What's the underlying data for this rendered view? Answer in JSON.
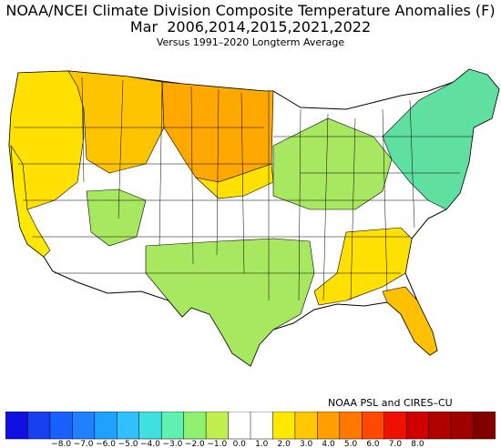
{
  "header": {
    "title_line1": "NOAA/NCEI Climate Division Composite Temperature Anomalies (F)",
    "title_line2": "Mar  2006,2014,2015,2021,2022",
    "title_line3": "Versus 1991–2020 Longterm Average"
  },
  "credit": "NOAA PSL and CIRES–CU",
  "colorbar": {
    "colors": [
      "#1010e0",
      "#1840f0",
      "#1860ff",
      "#2080ff",
      "#20a0ff",
      "#30c0ff",
      "#40e0e0",
      "#60f0b0",
      "#90f070",
      "#c0f050",
      "#ffffff",
      "#ffffff",
      "#ffe800",
      "#ffc800",
      "#ffa000",
      "#ff7800",
      "#ff4800",
      "#f01000",
      "#d00000",
      "#b00000",
      "#a00000",
      "#800000"
    ],
    "tick_labels": [
      "−8.0",
      "−7.0",
      "−6.0",
      "−5.0",
      "−4.0",
      "−3.0",
      "−2.0",
      "−1.0",
      "0.0",
      "1.0",
      "2.0",
      "3.0",
      "4.0",
      "5.0",
      "6.0",
      "7.0",
      "8.0"
    ]
  },
  "map_regions": [
    {
      "name": "pacific-northwest",
      "color": "#ffe000",
      "level": "0.5 to 1.0"
    },
    {
      "name": "northern-rockies",
      "color": "#ffc400",
      "level": "1.0 to 2.0"
    },
    {
      "name": "northern-plains",
      "color": "#ffa800",
      "level": "2.0 to 3.0"
    },
    {
      "name": "california-coast",
      "color": "#ffe800",
      "level": "0.5 to 1.0"
    },
    {
      "name": "central-plains",
      "color": "#ffe000",
      "level": "0.5 to 1.0"
    },
    {
      "name": "southwest",
      "color": "#a8e860",
      "level": "-0.5 to -1.0"
    },
    {
      "name": "south-central",
      "color": "#a8e860",
      "level": "-0.5 to -1.0"
    },
    {
      "name": "great-lakes",
      "color": "#a8e860",
      "level": "-0.5 to -1.0"
    },
    {
      "name": "new-england",
      "color": "#60e0a0",
      "level": "-1.0 to -2.0"
    },
    {
      "name": "southeast",
      "color": "#ffe000",
      "level": "0.5 to 1.0"
    },
    {
      "name": "florida",
      "color": "#ffc000",
      "level": "1.0 to 2.0"
    }
  ]
}
